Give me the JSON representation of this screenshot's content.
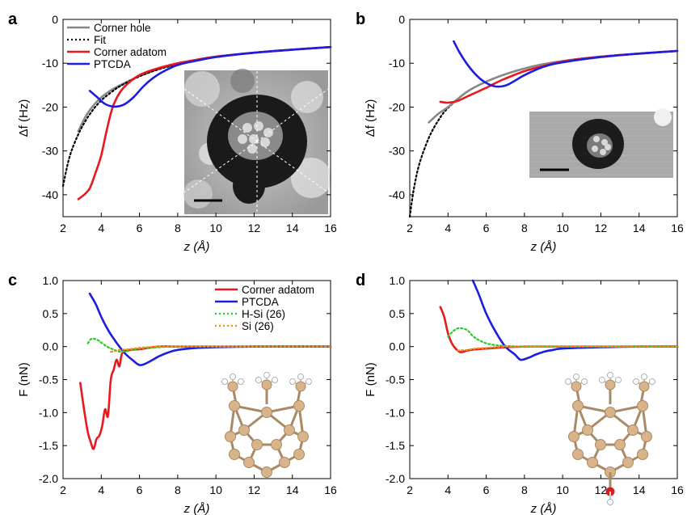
{
  "chart_data": [
    {
      "panel": "a",
      "type": "line",
      "xlabel": "z (Å)",
      "ylabel": "Δf (Hz)",
      "xlim": [
        2,
        16
      ],
      "ylim": [
        -45,
        0
      ],
      "xticks": [
        2,
        4,
        6,
        8,
        10,
        12,
        14,
        16
      ],
      "yticks": [
        0,
        -10,
        -20,
        -30,
        -40
      ],
      "legend": "top-left",
      "inset": "STM image of corner hole with dashed sector lines and scale bar",
      "series": [
        {
          "name": "Corner hole",
          "color": "#888888",
          "style": "solid",
          "x": [
            2.8,
            3.2,
            3.6,
            4,
            4.5,
            5,
            6,
            7,
            8,
            9,
            10,
            11,
            12,
            13,
            14,
            15,
            16
          ],
          "y": [
            -25.5,
            -22,
            -19.6,
            -17.8,
            -16.2,
            -15,
            -12.9,
            -11.3,
            -10.1,
            -9.2,
            -8.5,
            -8,
            -7.6,
            -7.2,
            -6.9,
            -6.6,
            -6.3
          ]
        },
        {
          "name": "Fit",
          "color": "#000000",
          "style": "dotted",
          "x": [
            2,
            2.3,
            2.6,
            3,
            3.5,
            4,
            4.5,
            5,
            6,
            7,
            8,
            9,
            10,
            11,
            12,
            13,
            14,
            15,
            16
          ],
          "y": [
            -38,
            -32,
            -28.2,
            -24.5,
            -21,
            -18.5,
            -16.7,
            -15.2,
            -13,
            -11.4,
            -10.2,
            -9.3,
            -8.6,
            -8,
            -7.6,
            -7.2,
            -6.9,
            -6.6,
            -6.3
          ]
        },
        {
          "name": "Corner adatom",
          "color": "#e8191c",
          "style": "solid",
          "x": [
            2.8,
            3.1,
            3.4,
            3.7,
            4,
            4.3,
            4.6,
            5,
            5.5,
            6,
            6.5,
            7,
            8,
            9,
            10,
            12,
            14,
            16
          ],
          "y": [
            -41,
            -40,
            -38.5,
            -35,
            -31,
            -25,
            -20,
            -16.5,
            -14.2,
            -12.7,
            -11.8,
            -11.1,
            -10,
            -9.2,
            -8.5,
            -7.6,
            -6.9,
            -6.3
          ]
        },
        {
          "name": "PTCDA",
          "color": "#1d1de0",
          "style": "solid",
          "x": [
            3.4,
            3.8,
            4.2,
            4.7,
            5.2,
            5.7,
            6.2,
            6.7,
            7.2,
            8,
            9,
            10,
            12,
            14,
            16
          ],
          "y": [
            -16.3,
            -17.8,
            -19.3,
            -19.9,
            -19.4,
            -17.7,
            -15.3,
            -13.4,
            -12,
            -10.4,
            -9.4,
            -8.6,
            -7.6,
            -6.9,
            -6.3
          ]
        }
      ]
    },
    {
      "panel": "b",
      "type": "line",
      "xlabel": "z (Å)",
      "ylabel": "Δf (Hz)",
      "xlim": [
        2,
        16
      ],
      "ylim": [
        -45,
        0
      ],
      "xticks": [
        2,
        4,
        6,
        8,
        10,
        12,
        14,
        16
      ],
      "yticks": [
        0,
        -10,
        -20,
        -30,
        -40
      ],
      "inset": "STM image with scale bar",
      "series": [
        {
          "name": "Fit",
          "color": "#000000",
          "style": "dotted",
          "x": [
            2,
            2.2,
            2.5,
            3,
            3.5,
            4,
            5,
            6,
            7,
            8,
            9,
            10,
            11,
            12,
            13,
            14,
            15,
            16
          ],
          "y": [
            -45,
            -39,
            -33,
            -27,
            -23,
            -20.2,
            -16.5,
            -14.2,
            -12.5,
            -11.2,
            -10.2,
            -9.5,
            -8.9,
            -8.5,
            -8.1,
            -7.8,
            -7.5,
            -7.2
          ]
        },
        {
          "name": "Corner hole",
          "color": "#888888",
          "style": "solid",
          "x": [
            3,
            3.5,
            4,
            5,
            6,
            7,
            8,
            9,
            10,
            12,
            14,
            16
          ],
          "y": [
            -23.5,
            -21.5,
            -20,
            -16.5,
            -14.2,
            -12.5,
            -11.2,
            -10.2,
            -9.5,
            -8.5,
            -7.8,
            -7.2
          ]
        },
        {
          "name": "Corner adatom",
          "color": "#e8191c",
          "style": "solid",
          "x": [
            3.6,
            4,
            4.5,
            5,
            5.5,
            6,
            6.5,
            7,
            8,
            9,
            10,
            12,
            14,
            16
          ],
          "y": [
            -18.8,
            -19,
            -18.6,
            -17.6,
            -16.6,
            -15.6,
            -14.5,
            -13.5,
            -11.8,
            -10.6,
            -9.6,
            -8.5,
            -7.8,
            -7.2
          ]
        },
        {
          "name": "PTCDA",
          "color": "#1d1de0",
          "style": "solid",
          "x": [
            4.3,
            4.6,
            5,
            5.5,
            6,
            6.5,
            7,
            7.5,
            8,
            9,
            10,
            12,
            14,
            16
          ],
          "y": [
            -5,
            -7.5,
            -10.2,
            -12.8,
            -14.5,
            -15.3,
            -15.1,
            -14,
            -12.7,
            -10.8,
            -9.8,
            -8.6,
            -7.8,
            -7.2
          ]
        }
      ]
    },
    {
      "panel": "c",
      "type": "line",
      "xlabel": "z (Å)",
      "ylabel": "F (nN)",
      "xlim": [
        2,
        16
      ],
      "ylim": [
        -2.0,
        1.0
      ],
      "xticks": [
        2,
        4,
        6,
        8,
        10,
        12,
        14,
        16
      ],
      "yticks": [
        "1.0",
        "0.5",
        "0.0",
        "-0.5",
        "-1.0",
        "-1.5",
        "-2.0"
      ],
      "legend": "top-right",
      "inset": "ball-and-stick Si cluster model",
      "series": [
        {
          "name": "Corner adatom",
          "color": "#e8191c",
          "style": "solid",
          "x": [
            2.9,
            3.0,
            3.15,
            3.3,
            3.45,
            3.6,
            3.75,
            3.9,
            4.05,
            4.2,
            4.35,
            4.5,
            4.65,
            4.8,
            4.95,
            5.1,
            5.5,
            6,
            7,
            8,
            10,
            12,
            14,
            16
          ],
          "y": [
            -0.55,
            -0.75,
            -1.05,
            -1.3,
            -1.45,
            -1.55,
            -1.4,
            -1.35,
            -1.2,
            -0.95,
            -1.05,
            -0.5,
            -0.35,
            -0.2,
            -0.3,
            -0.1,
            -0.05,
            -0.04,
            0,
            0,
            0,
            0,
            0,
            0
          ]
        },
        {
          "name": "PTCDA",
          "color": "#1d1de0",
          "style": "solid",
          "x": [
            3.4,
            3.7,
            4,
            4.3,
            4.6,
            5,
            5.3,
            5.7,
            6,
            6.3,
            6.7,
            7,
            7.5,
            8,
            9,
            10,
            12,
            14,
            16
          ],
          "y": [
            0.8,
            0.65,
            0.45,
            0.28,
            0.14,
            -0.02,
            -0.12,
            -0.22,
            -0.28,
            -0.26,
            -0.2,
            -0.15,
            -0.09,
            -0.05,
            -0.02,
            -0.01,
            0,
            0,
            0
          ]
        },
        {
          "name": "H-Si (26)",
          "color": "#22cc22",
          "style": "dotted",
          "x": [
            3.3,
            3.5,
            3.8,
            4,
            4.3,
            4.6,
            5,
            5.5,
            6,
            7,
            8,
            10,
            12,
            14,
            16
          ],
          "y": [
            0.05,
            0.12,
            0.1,
            0.06,
            0.0,
            -0.04,
            -0.08,
            -0.06,
            -0.03,
            -0.01,
            0,
            0,
            0,
            0,
            0
          ]
        },
        {
          "name": "Si (26)",
          "color": "#f08c1a",
          "style": "dotted",
          "x": [
            4.5,
            5,
            5.5,
            6,
            7,
            8,
            10,
            12,
            14,
            16
          ],
          "y": [
            -0.08,
            -0.05,
            -0.04,
            -0.02,
            0,
            0,
            0,
            0,
            0,
            0
          ]
        }
      ]
    },
    {
      "panel": "d",
      "type": "line",
      "xlabel": "z (Å)",
      "ylabel": "F (nN)",
      "xlim": [
        2,
        16
      ],
      "ylim": [
        -2.0,
        1.0
      ],
      "xticks": [
        2,
        4,
        6,
        8,
        10,
        12,
        14,
        16
      ],
      "yticks": [
        "1.0",
        "0.5",
        "0.0",
        "-0.5",
        "-1.0",
        "-1.5",
        "-2.0"
      ],
      "inset": "ball-and-stick Si cluster model with OH termination",
      "series": [
        {
          "name": "Corner adatom",
          "color": "#e8191c",
          "style": "solid",
          "x": [
            3.6,
            3.8,
            4,
            4.2,
            4.4,
            4.6,
            4.8,
            5,
            5.5,
            6,
            6.5,
            7,
            8,
            10,
            12,
            14,
            16
          ],
          "y": [
            0.6,
            0.45,
            0.2,
            0.05,
            -0.03,
            -0.08,
            -0.08,
            -0.06,
            -0.04,
            -0.03,
            -0.02,
            -0.01,
            0,
            0,
            0,
            0,
            0
          ]
        },
        {
          "name": "PTCDA",
          "color": "#1d1de0",
          "style": "solid",
          "x": [
            5.3,
            5.6,
            6,
            6.5,
            7,
            7.5,
            7.8,
            8.2,
            8.6,
            9,
            9.5,
            10,
            12,
            14,
            16
          ],
          "y": [
            1.0,
            0.8,
            0.5,
            0.22,
            0.0,
            -0.12,
            -0.2,
            -0.17,
            -0.12,
            -0.08,
            -0.05,
            -0.03,
            -0.01,
            0,
            0
          ]
        },
        {
          "name": "H-Si (26)",
          "color": "#22cc22",
          "style": "dotted",
          "x": [
            4,
            4.3,
            4.6,
            5,
            5.3,
            5.6,
            6,
            6.5,
            7,
            8,
            10,
            12,
            14,
            16
          ],
          "y": [
            0.15,
            0.24,
            0.28,
            0.25,
            0.16,
            0.1,
            0.05,
            0.02,
            0.01,
            0,
            0,
            0,
            0,
            0
          ]
        },
        {
          "name": "Si (26)",
          "color": "#f08c1a",
          "style": "dotted",
          "x": [
            4.5,
            5,
            5.5,
            6,
            7,
            8,
            10,
            12,
            14,
            16
          ],
          "y": [
            -0.06,
            -0.05,
            -0.03,
            -0.02,
            0,
            0,
            0,
            0,
            0,
            0
          ]
        }
      ]
    }
  ],
  "panel_labels": [
    "a",
    "b",
    "c",
    "d"
  ],
  "colors": {
    "red": "#e8191c",
    "blue": "#1d1de0",
    "gray": "#888888",
    "green": "#22cc22",
    "orange": "#f08c1a"
  }
}
